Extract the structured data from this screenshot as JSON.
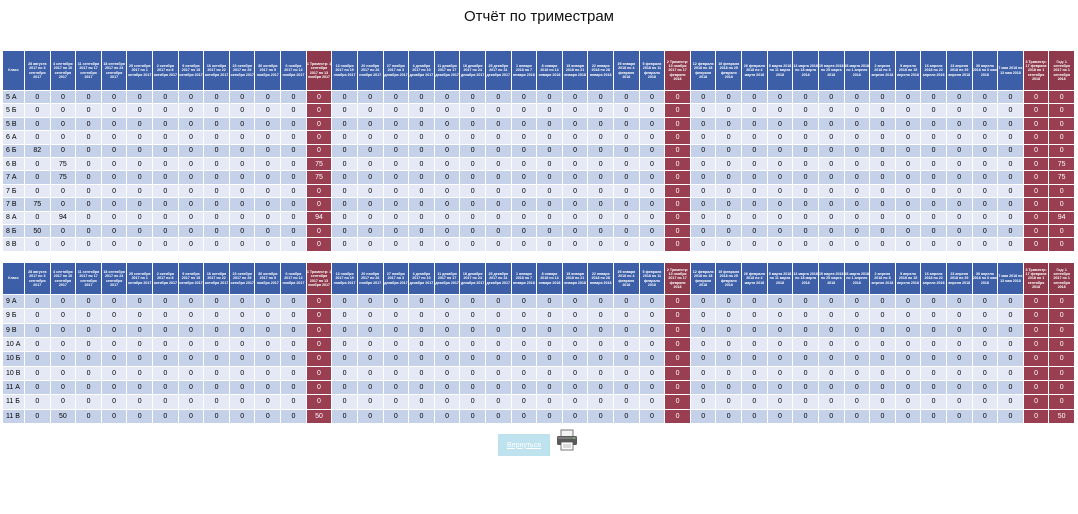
{
  "title": "Отчёт по триместрам",
  "tables": [
    {
      "head": [
        "Класс",
        "28 августа 2017 по 3 сентября 2017",
        "4 сентября 2017 по 10 сентября 2017",
        "11 сентября 2017 по 17 сентября 2017",
        "18 сентября 2017 по 24 сентября 2017",
        "25 сентября 2017 по 1 октября 2017",
        "2 октября 2017 по 8 октября 2017",
        "9 октября 2017 по 15 октября 2017",
        "16 октября 2017 по 22 октября 2017",
        "23 октября 2017 по 29 октября 2017",
        "30 октября 2017 по 5 ноября 2017",
        "6 ноября 2017 по 12 ноября 2017",
        "1 Триместр: 1 сентября 2017 по 13 ноября 2017",
        "13 ноября 2017 по 19 ноября 2017",
        "20 ноября 2017 по 26 ноября 2017",
        "27 ноября 2017 по 3 декабря 2017",
        "4 декабря 2017 по 10 декабря 2017",
        "11 декабря 2017 по 17 декабря 2017",
        "18 декабря 2017 по 24 декабря 2017",
        "25 декабря 2017 по 31 декабря 2017",
        "1 января 2018 по 7 января 2018",
        "8 января 2018 по 14 января 2018",
        "15 января 2018 по 21 января 2018",
        "22 января 2018 по 28 января 2018",
        "29 января 2018 по 4 февраля 2018",
        "5 февраля 2018 по 11 февраля 2018",
        "2 Триместр: 13 ноября 2017 по 17 февраля 2018",
        "12 февраля 2018 по 18 февраля 2018",
        "19 февраля 2018 по 25 февраля 2018",
        "26 февраля 2018 по 4 марта 2018",
        "5 марта 2018 по 11 марта 2018",
        "12 марта 2018 по 18 марта 2018",
        "19 марта 2018 по 25 марта 2018",
        "26 марта 2018 по 1 апреля 2018",
        "2 апреля 2018 по 8 апреля 2018",
        "9 апреля 2018 по 15 апреля 2018",
        "16 апреля 2018 по 22 апреля 2018",
        "23 апреля 2018 по 29 апреля 2018",
        "30 апреля 2018 по 6 мая 2018",
        "7 мая 2018 по 13 мая 2018",
        "3 Триместр: 17 февраля 2018 по 1 сентября 2018",
        "Год: 1 сентября 2017 по 1 сентября 2018"
      ],
      "rows": [
        [
          "5 А",
          "0",
          "0",
          "0",
          "0",
          "0",
          "0",
          "0",
          "0",
          "0",
          "0",
          "0",
          "0",
          "0",
          "0",
          "0",
          "0",
          "0",
          "0",
          "0",
          "0",
          "0",
          "0",
          "0",
          "0",
          "0",
          "0",
          "0",
          "0",
          "0",
          "0",
          "0",
          "0",
          "0",
          "0",
          "0",
          "0",
          "0",
          "0",
          "0",
          "0",
          "0"
        ],
        [
          "5 Б",
          "0",
          "0",
          "0",
          "0",
          "0",
          "0",
          "0",
          "0",
          "0",
          "0",
          "0",
          "0",
          "0",
          "0",
          "0",
          "0",
          "0",
          "0",
          "0",
          "0",
          "0",
          "0",
          "0",
          "0",
          "0",
          "0",
          "0",
          "0",
          "0",
          "0",
          "0",
          "0",
          "0",
          "0",
          "0",
          "0",
          "0",
          "0",
          "0",
          "0",
          "0"
        ],
        [
          "5 В",
          "0",
          "0",
          "0",
          "0",
          "0",
          "0",
          "0",
          "0",
          "0",
          "0",
          "0",
          "0",
          "0",
          "0",
          "0",
          "0",
          "0",
          "0",
          "0",
          "0",
          "0",
          "0",
          "0",
          "0",
          "0",
          "0",
          "0",
          "0",
          "0",
          "0",
          "0",
          "0",
          "0",
          "0",
          "0",
          "0",
          "0",
          "0",
          "0",
          "0",
          "0"
        ],
        [
          "6 А",
          "0",
          "0",
          "0",
          "0",
          "0",
          "0",
          "0",
          "0",
          "0",
          "0",
          "0",
          "0",
          "0",
          "0",
          "0",
          "0",
          "0",
          "0",
          "0",
          "0",
          "0",
          "0",
          "0",
          "0",
          "0",
          "0",
          "0",
          "0",
          "0",
          "0",
          "0",
          "0",
          "0",
          "0",
          "0",
          "0",
          "0",
          "0",
          "0",
          "0",
          "0"
        ],
        [
          "6 Б",
          "82",
          "0",
          "0",
          "0",
          "0",
          "0",
          "0",
          "0",
          "0",
          "0",
          "0",
          "0",
          "0",
          "0",
          "0",
          "0",
          "0",
          "0",
          "0",
          "0",
          "0",
          "0",
          "0",
          "0",
          "0",
          "0",
          "0",
          "0",
          "0",
          "0",
          "0",
          "0",
          "0",
          "0",
          "0",
          "0",
          "0",
          "0",
          "0",
          "0",
          "0"
        ],
        [
          "6 В",
          "0",
          "75",
          "0",
          "0",
          "0",
          "0",
          "0",
          "0",
          "0",
          "0",
          "0",
          "75",
          "0",
          "0",
          "0",
          "0",
          "0",
          "0",
          "0",
          "0",
          "0",
          "0",
          "0",
          "0",
          "0",
          "0",
          "0",
          "0",
          "0",
          "0",
          "0",
          "0",
          "0",
          "0",
          "0",
          "0",
          "0",
          "0",
          "0",
          "0",
          "75"
        ],
        [
          "7 А",
          "0",
          "75",
          "0",
          "0",
          "0",
          "0",
          "0",
          "0",
          "0",
          "0",
          "0",
          "75",
          "0",
          "0",
          "0",
          "0",
          "0",
          "0",
          "0",
          "0",
          "0",
          "0",
          "0",
          "0",
          "0",
          "0",
          "0",
          "0",
          "0",
          "0",
          "0",
          "0",
          "0",
          "0",
          "0",
          "0",
          "0",
          "0",
          "0",
          "0",
          "75"
        ],
        [
          "7 Б",
          "0",
          "0",
          "0",
          "0",
          "0",
          "0",
          "0",
          "0",
          "0",
          "0",
          "0",
          "0",
          "0",
          "0",
          "0",
          "0",
          "0",
          "0",
          "0",
          "0",
          "0",
          "0",
          "0",
          "0",
          "0",
          "0",
          "0",
          "0",
          "0",
          "0",
          "0",
          "0",
          "0",
          "0",
          "0",
          "0",
          "0",
          "0",
          "0",
          "0",
          "0"
        ],
        [
          "7 В",
          "75",
          "0",
          "0",
          "0",
          "0",
          "0",
          "0",
          "0",
          "0",
          "0",
          "0",
          "0",
          "0",
          "0",
          "0",
          "0",
          "0",
          "0",
          "0",
          "0",
          "0",
          "0",
          "0",
          "0",
          "0",
          "0",
          "0",
          "0",
          "0",
          "0",
          "0",
          "0",
          "0",
          "0",
          "0",
          "0",
          "0",
          "0",
          "0",
          "0",
          "0"
        ],
        [
          "8 А",
          "0",
          "94",
          "0",
          "0",
          "0",
          "0",
          "0",
          "0",
          "0",
          "0",
          "0",
          "94",
          "0",
          "0",
          "0",
          "0",
          "0",
          "0",
          "0",
          "0",
          "0",
          "0",
          "0",
          "0",
          "0",
          "0",
          "0",
          "0",
          "0",
          "0",
          "0",
          "0",
          "0",
          "0",
          "0",
          "0",
          "0",
          "0",
          "0",
          "0",
          "94"
        ],
        [
          "8 Б",
          "50",
          "0",
          "0",
          "0",
          "0",
          "0",
          "0",
          "0",
          "0",
          "0",
          "0",
          "0",
          "0",
          "0",
          "0",
          "0",
          "0",
          "0",
          "0",
          "0",
          "0",
          "0",
          "0",
          "0",
          "0",
          "0",
          "0",
          "0",
          "0",
          "0",
          "0",
          "0",
          "0",
          "0",
          "0",
          "0",
          "0",
          "0",
          "0",
          "0",
          "0"
        ],
        [
          "8 В",
          "0",
          "0",
          "0",
          "0",
          "0",
          "0",
          "0",
          "0",
          "0",
          "0",
          "0",
          "0",
          "0",
          "0",
          "0",
          "0",
          "0",
          "0",
          "0",
          "0",
          "0",
          "0",
          "0",
          "0",
          "0",
          "0",
          "0",
          "0",
          "0",
          "0",
          "0",
          "0",
          "0",
          "0",
          "0",
          "0",
          "0",
          "0",
          "0",
          "0",
          "0"
        ]
      ]
    },
    {
      "head": [
        "Класс",
        "28 августа 2017 по 3 сентября 2017",
        "4 сентября 2017 по 10 сентября 2017",
        "11 сентября 2017 по 17 сентября 2017",
        "18 сентября 2017 по 24 сентября 2017",
        "25 сентября 2017 по 1 октября 2017",
        "2 октября 2017 по 8 октября 2017",
        "9 октября 2017 по 15 октября 2017",
        "16 октября 2017 по 22 октября 2017",
        "23 октября 2017 по 29 октября 2017",
        "30 октября 2017 по 5 ноября 2017",
        "6 ноября 2017 по 12 ноября 2017",
        "1 Триместр: 1 сентября 2017 по 13 ноября 2017",
        "13 ноября 2017 по 19 ноября 2017",
        "20 ноября 2017 по 26 ноября 2017",
        "27 ноября 2017 по 3 декабря 2017",
        "4 декабря 2017 по 10 декабря 2017",
        "11 декабря 2017 по 17 декабря 2017",
        "18 декабря 2017 по 24 декабря 2017",
        "25 декабря 2017 по 31 декабря 2017",
        "1 января 2018 по 7 января 2018",
        "8 января 2018 по 14 января 2018",
        "15 января 2018 по 21 января 2018",
        "22 января 2018 по 28 января 2018",
        "29 января 2018 по 4 февраля 2018",
        "5 февраля 2018 по 11 февраля 2018",
        "2 Триместр: 13 ноября 2017 по 17 февраля 2018",
        "12 февраля 2018 по 18 февраля 2018",
        "19 февраля 2018 по 25 февраля 2018",
        "26 февраля 2018 по 4 марта 2018",
        "5 марта 2018 по 11 марта 2018",
        "12 марта 2018 по 18 марта 2018",
        "19 марта 2018 по 25 марта 2018",
        "26 марта 2018 по 1 апреля 2018",
        "2 апреля 2018 по 8 апреля 2018",
        "9 апреля 2018 по 15 апреля 2018",
        "16 апреля 2018 по 22 апреля 2018",
        "23 апреля 2018 по 29 апреля 2018",
        "30 апреля 2018 по 6 мая 2018",
        "7 мая 2018 по 13 мая 2018",
        "3 Триместр: 17 февраля 2018 по 1 сентября 2018",
        "Год: 1 сентября 2017 по 1 сентября 2018"
      ],
      "rows": [
        [
          "9 А",
          "0",
          "0",
          "0",
          "0",
          "0",
          "0",
          "0",
          "0",
          "0",
          "0",
          "0",
          "0",
          "0",
          "0",
          "0",
          "0",
          "0",
          "0",
          "0",
          "0",
          "0",
          "0",
          "0",
          "0",
          "0",
          "0",
          "0",
          "0",
          "0",
          "0",
          "0",
          "0",
          "0",
          "0",
          "0",
          "0",
          "0",
          "0",
          "0",
          "0",
          "0"
        ],
        [
          "9 Б",
          "0",
          "0",
          "0",
          "0",
          "0",
          "0",
          "0",
          "0",
          "0",
          "0",
          "0",
          "0",
          "0",
          "0",
          "0",
          "0",
          "0",
          "0",
          "0",
          "0",
          "0",
          "0",
          "0",
          "0",
          "0",
          "0",
          "0",
          "0",
          "0",
          "0",
          "0",
          "0",
          "0",
          "0",
          "0",
          "0",
          "0",
          "0",
          "0",
          "0",
          "0"
        ],
        [
          "9 В",
          "0",
          "0",
          "0",
          "0",
          "0",
          "0",
          "0",
          "0",
          "0",
          "0",
          "0",
          "0",
          "0",
          "0",
          "0",
          "0",
          "0",
          "0",
          "0",
          "0",
          "0",
          "0",
          "0",
          "0",
          "0",
          "0",
          "0",
          "0",
          "0",
          "0",
          "0",
          "0",
          "0",
          "0",
          "0",
          "0",
          "0",
          "0",
          "0",
          "0",
          "0"
        ],
        [
          "10 А",
          "0",
          "0",
          "0",
          "0",
          "0",
          "0",
          "0",
          "0",
          "0",
          "0",
          "0",
          "0",
          "0",
          "0",
          "0",
          "0",
          "0",
          "0",
          "0",
          "0",
          "0",
          "0",
          "0",
          "0",
          "0",
          "0",
          "0",
          "0",
          "0",
          "0",
          "0",
          "0",
          "0",
          "0",
          "0",
          "0",
          "0",
          "0",
          "0",
          "0",
          "0"
        ],
        [
          "10 Б",
          "0",
          "0",
          "0",
          "0",
          "0",
          "0",
          "0",
          "0",
          "0",
          "0",
          "0",
          "0",
          "0",
          "0",
          "0",
          "0",
          "0",
          "0",
          "0",
          "0",
          "0",
          "0",
          "0",
          "0",
          "0",
          "0",
          "0",
          "0",
          "0",
          "0",
          "0",
          "0",
          "0",
          "0",
          "0",
          "0",
          "0",
          "0",
          "0",
          "0",
          "0"
        ],
        [
          "10 В",
          "0",
          "0",
          "0",
          "0",
          "0",
          "0",
          "0",
          "0",
          "0",
          "0",
          "0",
          "0",
          "0",
          "0",
          "0",
          "0",
          "0",
          "0",
          "0",
          "0",
          "0",
          "0",
          "0",
          "0",
          "0",
          "0",
          "0",
          "0",
          "0",
          "0",
          "0",
          "0",
          "0",
          "0",
          "0",
          "0",
          "0",
          "0",
          "0",
          "0",
          "0"
        ],
        [
          "11 А",
          "0",
          "0",
          "0",
          "0",
          "0",
          "0",
          "0",
          "0",
          "0",
          "0",
          "0",
          "0",
          "0",
          "0",
          "0",
          "0",
          "0",
          "0",
          "0",
          "0",
          "0",
          "0",
          "0",
          "0",
          "0",
          "0",
          "0",
          "0",
          "0",
          "0",
          "0",
          "0",
          "0",
          "0",
          "0",
          "0",
          "0",
          "0",
          "0",
          "0",
          "0"
        ],
        [
          "11 Б",
          "0",
          "0",
          "0",
          "0",
          "0",
          "0",
          "0",
          "0",
          "0",
          "0",
          "0",
          "0",
          "0",
          "0",
          "0",
          "0",
          "0",
          "0",
          "0",
          "0",
          "0",
          "0",
          "0",
          "0",
          "0",
          "0",
          "0",
          "0",
          "0",
          "0",
          "0",
          "0",
          "0",
          "0",
          "0",
          "0",
          "0",
          "0",
          "0",
          "0",
          "0"
        ],
        [
          "11 В",
          "0",
          "50",
          "0",
          "0",
          "0",
          "0",
          "0",
          "0",
          "0",
          "0",
          "0",
          "50",
          "0",
          "0",
          "0",
          "0",
          "0",
          "0",
          "0",
          "0",
          "0",
          "0",
          "0",
          "0",
          "0",
          "0",
          "0",
          "0",
          "0",
          "0",
          "0",
          "0",
          "0",
          "0",
          "0",
          "0",
          "0",
          "0",
          "0",
          "0",
          "50"
        ]
      ]
    }
  ],
  "total_columns": [
    12,
    26,
    40,
    41
  ],
  "colors": {
    "header_blue": "#3c5fa8",
    "total_red": "#9a3e52",
    "row_odd": "#c5d0e9",
    "row_even": "#e5e9f5"
  },
  "footer": {
    "back_label": "Вернуться",
    "print_icon": "printer-icon"
  }
}
